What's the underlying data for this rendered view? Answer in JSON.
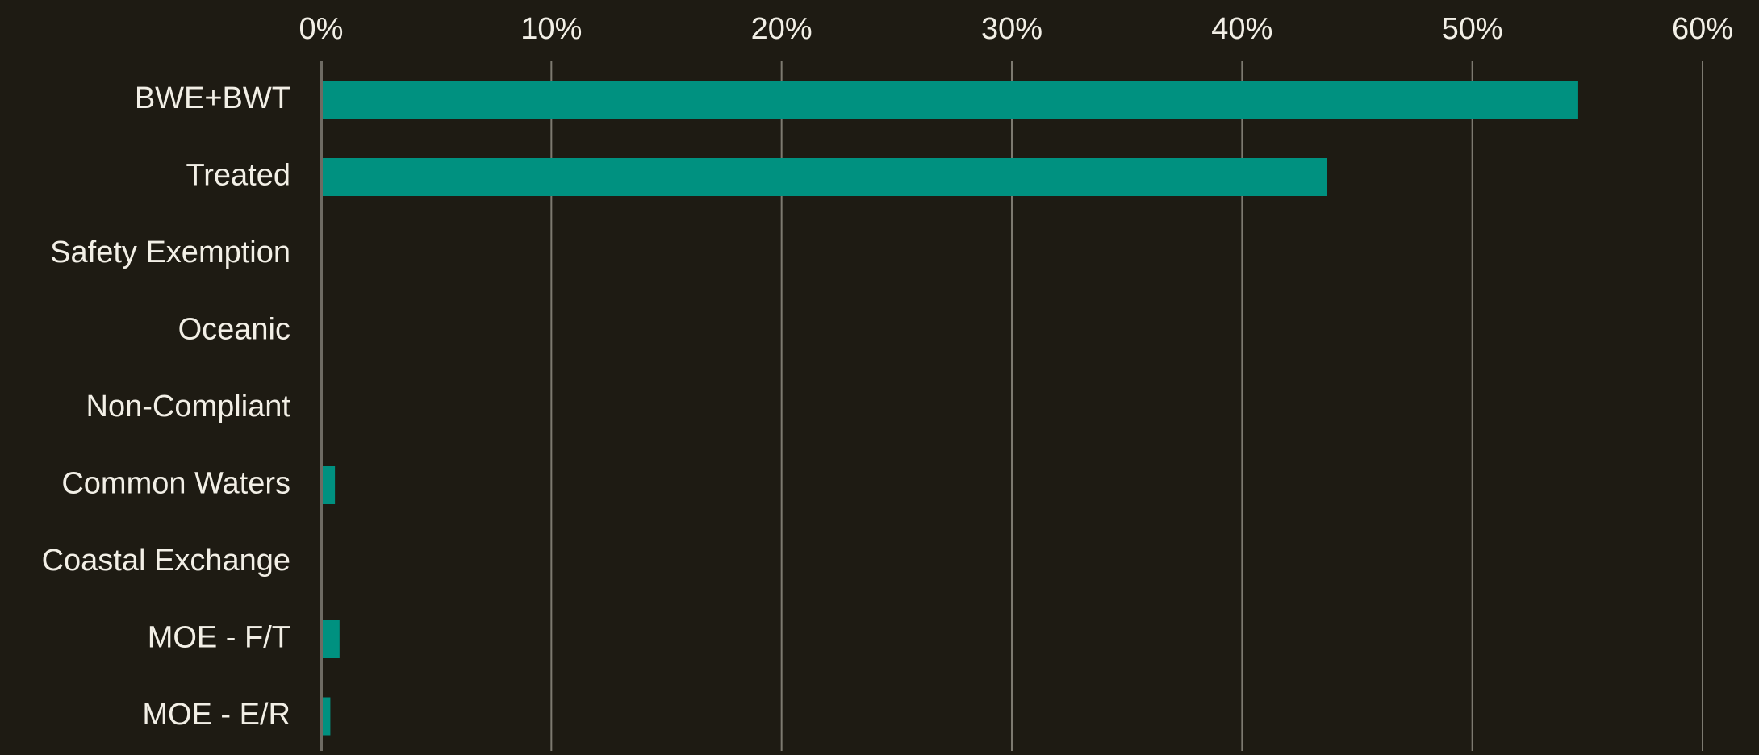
{
  "colors": {
    "background": "#1e1b13",
    "bar": "#009180",
    "gridline": "#7d7a70",
    "axis": "#6e6b63",
    "text": "#f2efe6"
  },
  "chart_data": {
    "type": "bar",
    "orientation": "horizontal",
    "title": "",
    "xlabel": "",
    "ylabel": "",
    "x_axis_position": "top",
    "grid": true,
    "legend": "none",
    "xlim": [
      0,
      60
    ],
    "x_ticks": [
      0,
      10,
      20,
      30,
      40,
      50,
      60
    ],
    "x_tick_labels": [
      "0%",
      "10%",
      "20%",
      "30%",
      "40%",
      "50%",
      "60%"
    ],
    "categories": [
      "BWE+BWT",
      "Treated",
      "Safety Exemption",
      "Oceanic",
      "Non-Compliant",
      "Common Waters",
      "Coastal Exchange",
      "MOE - F/T",
      "MOE - E/R"
    ],
    "values": [
      54.6,
      43.7,
      0,
      0,
      0,
      0.6,
      0,
      0.8,
      0.4
    ],
    "unit": "%"
  }
}
